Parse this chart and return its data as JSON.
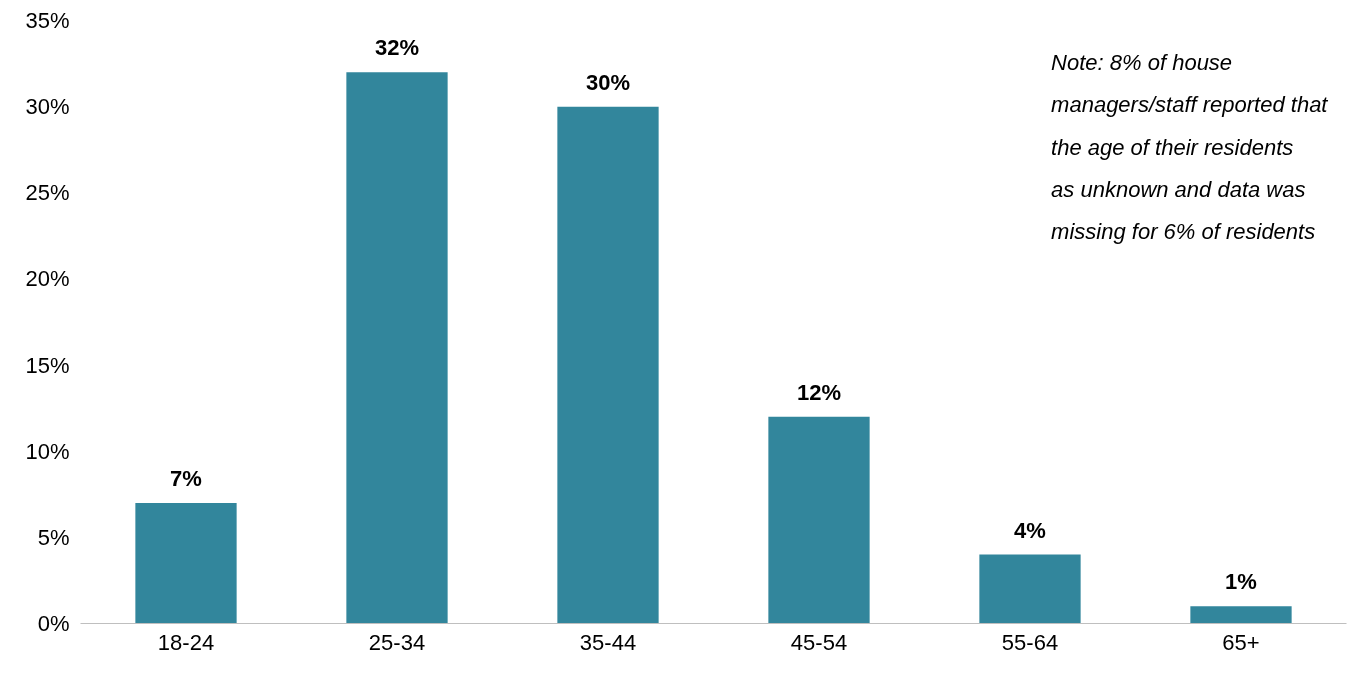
{
  "chart_data": {
    "type": "bar",
    "categories": [
      "18-24",
      "25-34",
      "35-44",
      "45-54",
      "55-64",
      "65+"
    ],
    "values": [
      7,
      32,
      30,
      12,
      4,
      1
    ],
    "color": "#32869c",
    "value_labels": [
      "7%",
      "32%",
      "30%",
      "12%",
      "4%",
      "1%"
    ],
    "ylim": [
      0,
      35
    ],
    "yticks": [
      {
        "value": 0,
        "label": "0%"
      },
      {
        "value": 5,
        "label": "5%"
      },
      {
        "value": 10,
        "label": "10%"
      },
      {
        "value": 15,
        "label": "15%"
      },
      {
        "value": 20,
        "label": "20%"
      },
      {
        "value": 25,
        "label": "25%"
      },
      {
        "value": 30,
        "label": "30%"
      },
      {
        "value": 35,
        "label": "35%"
      }
    ],
    "annotations": [
      "Note: 8% of house managers/staff reported that the age of their residents as unknown and data was missing for 6% of residents"
    ],
    "grid": false
  }
}
